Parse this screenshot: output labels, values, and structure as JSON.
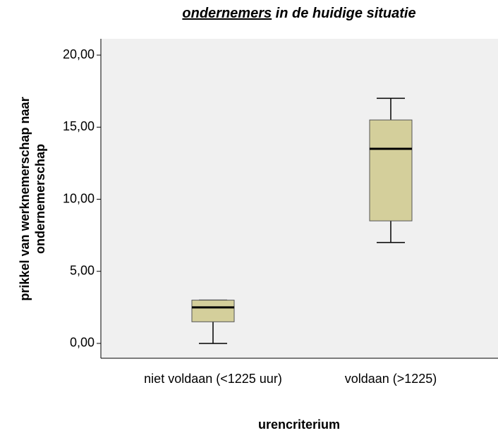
{
  "chart_data": {
    "type": "box",
    "title_underlined": "ondernemers",
    "title_rest": " in de huidige situatie",
    "ylabel": [
      "prikkel van werknemerschap naar",
      "ondernemerschap"
    ],
    "xlabel": "urencriterium",
    "categories": [
      "niet voldaan (<1225 uur)",
      "voldaan (>1225)"
    ],
    "boxes": [
      {
        "min": 0,
        "q1": 1.5,
        "median": 2.5,
        "q3": 3,
        "max": 3
      },
      {
        "min": 7,
        "q1": 8.5,
        "median": 13.5,
        "q3": 15.5,
        "max": 17
      }
    ],
    "color": "#d4cf9b",
    "ylim": [
      -1.03,
      21.13
    ],
    "yticks": [
      {
        "value": 0,
        "label": "0,00"
      },
      {
        "value": 5,
        "label": "5,00"
      },
      {
        "value": 10,
        "label": "10,00"
      },
      {
        "value": 15,
        "label": "15,00"
      },
      {
        "value": 20,
        "label": "20,00"
      }
    ]
  }
}
